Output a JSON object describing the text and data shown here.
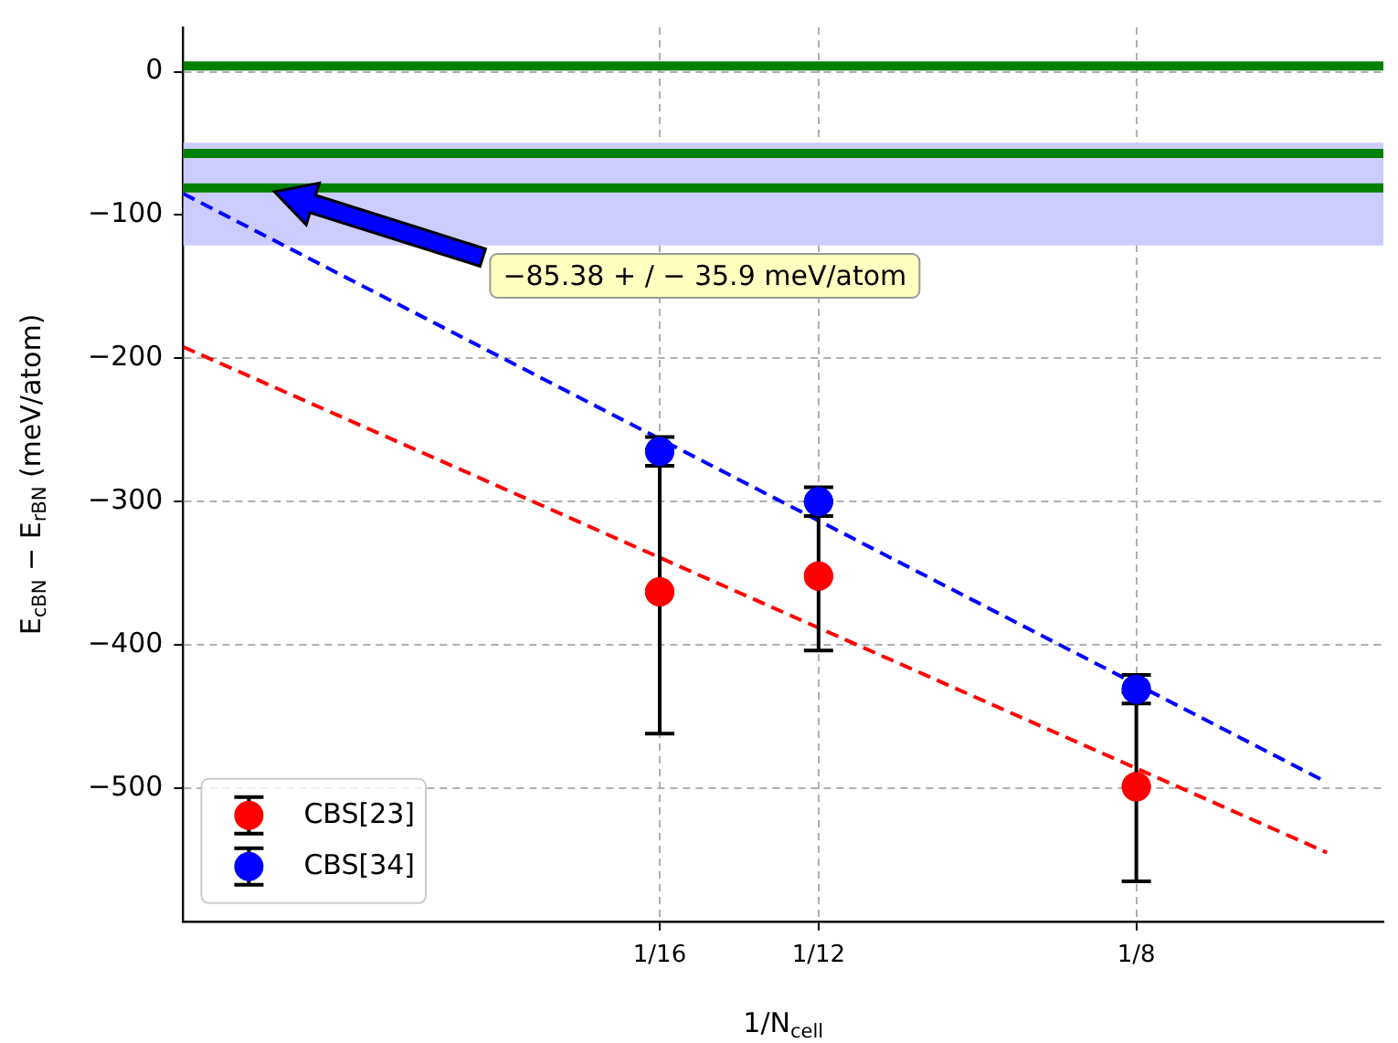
{
  "chart_data": {
    "type": "scatter",
    "xlabel": "1/N$_{cell}$",
    "ylabel": "E$_{cBN}$ − E$_{rBN}$ (meV/atom)",
    "xlim": [
      0,
      0.1574
    ],
    "xticks": [
      {
        "value": 0.0625,
        "label": "1/16"
      },
      {
        "value": 0.08333,
        "label": "1/12"
      },
      {
        "value": 0.125,
        "label": "1/8"
      }
    ],
    "ylim": [
      -593,
      31
    ],
    "yticks": [
      -500,
      -400,
      -300,
      -200,
      -100,
      0
    ],
    "series": [
      {
        "name": "CBS[23]",
        "type": "scatter",
        "color": "#ff0000",
        "x": [
          0.0625,
          0.08333,
          0.125
        ],
        "values": [
          -363,
          -352,
          -499
        ],
        "errors": [
          99,
          52,
          66
        ],
        "marker": "circle"
      },
      {
        "name": "CBS[34]",
        "type": "scatter",
        "color": "#0000ff",
        "x": [
          0.0625,
          0.08333,
          0.125
        ],
        "values": [
          -265,
          -300,
          -431
        ],
        "errors": [
          10,
          10,
          10
        ],
        "marker": "circle"
      },
      {
        "type": "line",
        "color": "#ff0000",
        "x": [
          0,
          0.15
        ],
        "values": [
          -192,
          -545
        ],
        "line_style": "dashed",
        "marker": "none"
      },
      {
        "type": "line",
        "color": "#0000ff",
        "x": [
          0,
          0.15
        ],
        "values": [
          -85,
          -496
        ],
        "line_style": "dashed",
        "marker": "none"
      }
    ],
    "ref_lines": [
      {
        "axis": "y",
        "value": 4,
        "color": "#008000"
      },
      {
        "axis": "y",
        "value": -57,
        "color": "#008000"
      },
      {
        "axis": "y",
        "value": -81,
        "color": "#008000"
      }
    ],
    "bands": [
      {
        "axis": "y",
        "from": -121.28,
        "to": -49.48,
        "color": "#ccccff"
      }
    ],
    "annotations": [
      "−85.38 + / − 35.9 meV/atom"
    ],
    "grid": true,
    "legend": "bottom left"
  }
}
